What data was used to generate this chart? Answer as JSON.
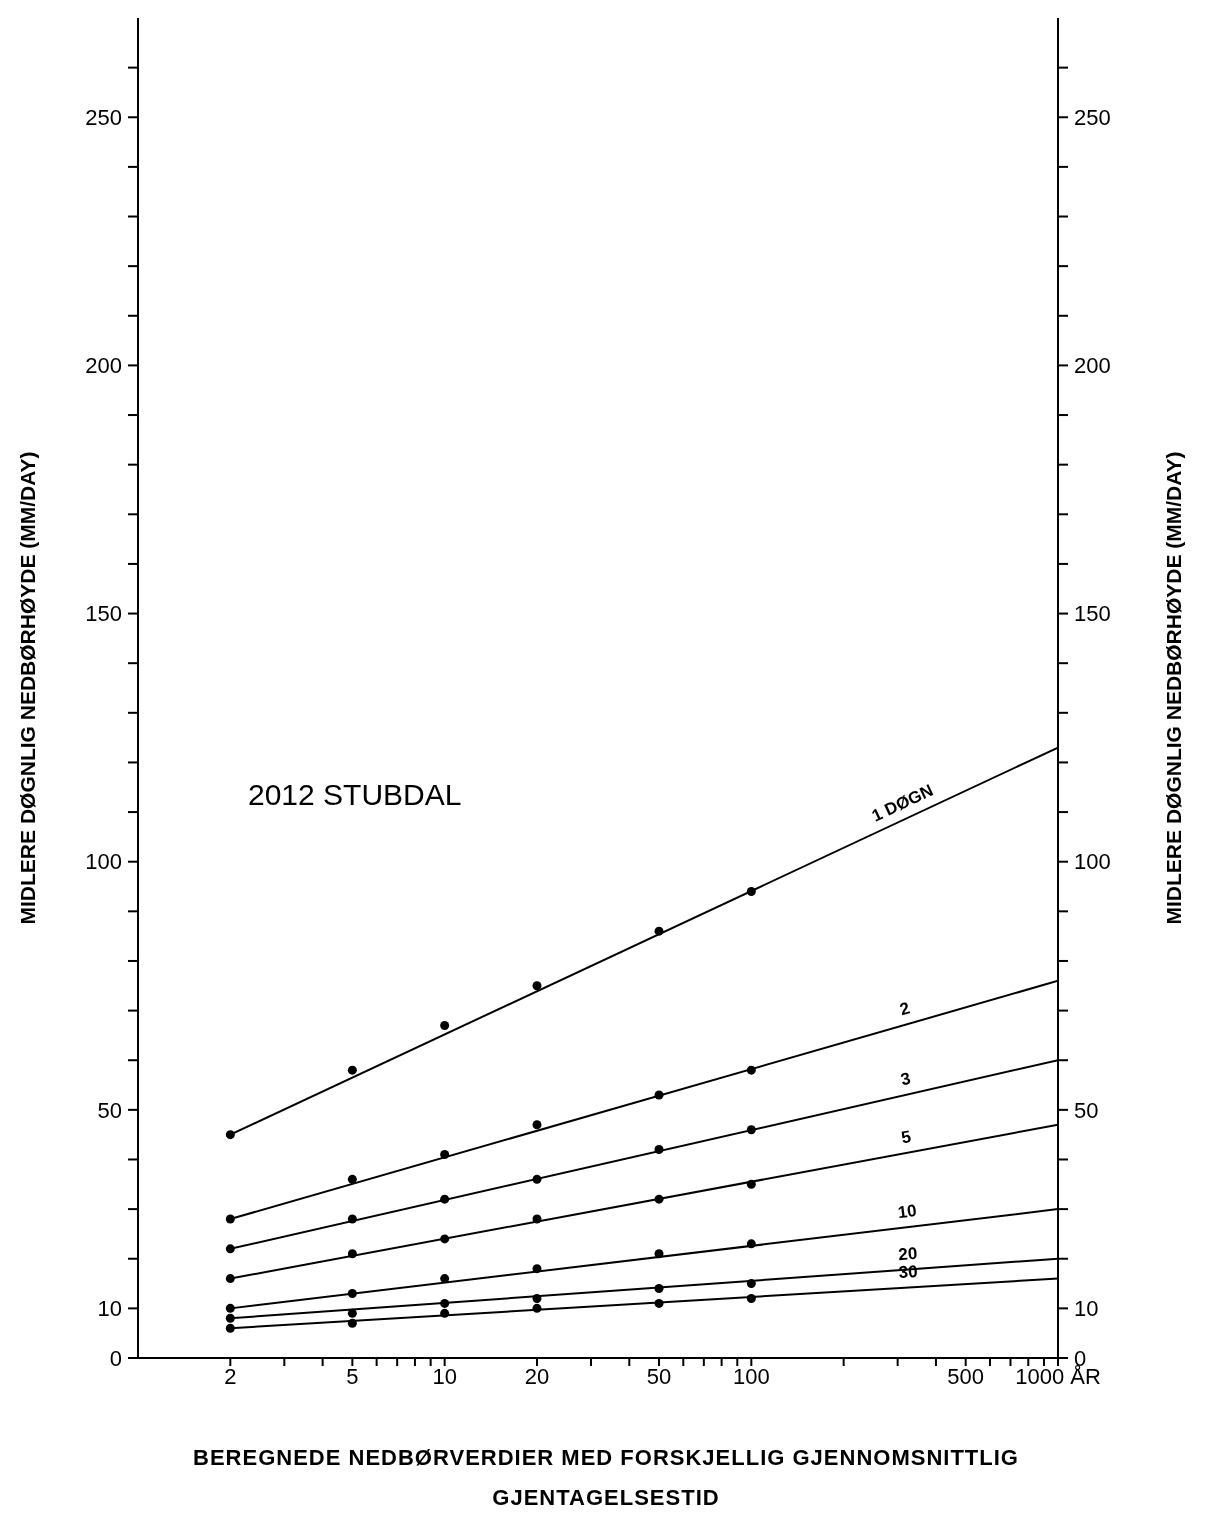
{
  "chart_data": {
    "type": "line",
    "title": "2012 STUBDAL",
    "xlabel": "BEREGNEDE NEDBØRVERDIER MED FORSKJELLIG GJENNOMSNITTLIG GJENTAGELSESTID",
    "ylabel": "MIDLERE DØGNLIG NEDBØRHØYDE (MM/DAY)",
    "y2label": "MIDLERE DØGNLIG NEDBØRHØYDE (MM/DAY)",
    "log": "x",
    "grid": false,
    "marker": "circle",
    "line_style": "solid",
    "xlim": [
      1,
      1000
    ],
    "xticks": [
      2,
      {
        "value": 3,
        "label": null
      },
      {
        "value": 4,
        "label": null
      },
      5,
      {
        "value": 6,
        "label": null
      },
      {
        "value": 7,
        "label": null
      },
      {
        "value": 8,
        "label": null
      },
      {
        "value": 9,
        "label": null
      },
      10,
      20,
      {
        "value": 30,
        "label": null
      },
      {
        "value": 40,
        "label": null
      },
      50,
      {
        "value": 60,
        "label": null
      },
      {
        "value": 70,
        "label": null
      },
      {
        "value": 80,
        "label": null
      },
      {
        "value": 90,
        "label": null
      },
      100,
      {
        "value": 200,
        "label": null
      },
      {
        "value": 300,
        "label": null
      },
      {
        "value": 400,
        "label": null
      },
      500,
      {
        "value": 600,
        "label": null
      },
      {
        "value": 700,
        "label": null
      },
      {
        "value": 800,
        "label": null
      },
      {
        "value": 900,
        "label": null
      },
      {
        "value": 1000,
        "label": "1000 ÅR"
      }
    ],
    "ylim": [
      0,
      270
    ],
    "yticks": [
      0,
      10,
      {
        "value": 20,
        "label": null
      },
      {
        "value": 30,
        "label": null
      },
      {
        "value": 40,
        "label": null
      },
      50,
      {
        "value": 60,
        "label": null
      },
      {
        "value": 70,
        "label": null
      },
      {
        "value": 80,
        "label": null
      },
      {
        "value": 90,
        "label": null
      },
      100,
      {
        "value": 110,
        "label": null
      },
      {
        "value": 120,
        "label": null
      },
      {
        "value": 130,
        "label": null
      },
      {
        "value": 140,
        "label": null
      },
      150,
      {
        "value": 160,
        "label": null
      },
      {
        "value": 170,
        "label": null
      },
      {
        "value": 180,
        "label": null
      },
      {
        "value": 190,
        "label": null
      },
      200,
      {
        "value": 210,
        "label": null
      },
      {
        "value": 220,
        "label": null
      },
      {
        "value": 230,
        "label": null
      },
      {
        "value": 240,
        "label": null
      },
      250,
      {
        "value": 260,
        "label": null
      }
    ],
    "y2lim": [
      0,
      270
    ],
    "y2ticks": [
      0,
      10,
      {
        "value": 20,
        "label": null
      },
      {
        "value": 30,
        "label": null
      },
      {
        "value": 40,
        "label": null
      },
      50,
      {
        "value": 60,
        "label": null
      },
      {
        "value": 70,
        "label": null
      },
      {
        "value": 80,
        "label": null
      },
      {
        "value": 90,
        "label": null
      },
      100,
      {
        "value": 110,
        "label": null
      },
      {
        "value": 120,
        "label": null
      },
      {
        "value": 130,
        "label": null
      },
      {
        "value": 140,
        "label": null
      },
      150,
      {
        "value": 160,
        "label": null
      },
      {
        "value": 170,
        "label": null
      },
      {
        "value": 180,
        "label": null
      },
      {
        "value": 190,
        "label": null
      },
      200,
      {
        "value": 210,
        "label": null
      },
      {
        "value": 220,
        "label": null
      },
      {
        "value": 230,
        "label": null
      },
      {
        "value": 240,
        "label": null
      },
      250,
      {
        "value": 260,
        "label": null
      }
    ],
    "series": [
      {
        "name": "1 DØGN",
        "marker": "none",
        "color": "#000000",
        "x": [
          2,
          1000
        ],
        "values": [
          45,
          123
        ]
      },
      {
        "name": "2",
        "marker": "none",
        "color": "#000000",
        "x": [
          2,
          1000
        ],
        "values": [
          28,
          76
        ]
      },
      {
        "name": "3",
        "marker": "none",
        "color": "#000000",
        "x": [
          2,
          1000
        ],
        "values": [
          22,
          60
        ]
      },
      {
        "name": "5",
        "marker": "none",
        "color": "#000000",
        "x": [
          2,
          1000
        ],
        "values": [
          16,
          47
        ]
      },
      {
        "name": "10",
        "marker": "none",
        "color": "#000000",
        "x": [
          2,
          1000
        ],
        "values": [
          10,
          30
        ]
      },
      {
        "name": "20",
        "marker": "none",
        "color": "#000000",
        "x": [
          2,
          1000
        ],
        "values": [
          8,
          20
        ]
      },
      {
        "name": "30",
        "marker": "none",
        "color": "#000000",
        "x": [
          2,
          1000
        ],
        "values": [
          6,
          16
        ]
      },
      {
        "type": "scatter",
        "color": "#000000",
        "x": [
          2,
          5,
          10,
          20,
          50,
          100
        ],
        "values": [
          45,
          58,
          67,
          75,
          86,
          94
        ]
      },
      {
        "type": "scatter",
        "color": "#000000",
        "x": [
          2,
          5,
          10,
          20,
          50,
          100
        ],
        "values": [
          28,
          36,
          41,
          47,
          53,
          58
        ]
      },
      {
        "type": "scatter",
        "color": "#000000",
        "x": [
          2,
          5,
          10,
          20,
          50,
          100
        ],
        "values": [
          22,
          28,
          32,
          36,
          42,
          46
        ]
      },
      {
        "type": "scatter",
        "color": "#000000",
        "x": [
          2,
          5,
          10,
          20,
          50,
          100
        ],
        "values": [
          16,
          21,
          24,
          28,
          32,
          35
        ]
      },
      {
        "type": "scatter",
        "color": "#000000",
        "x": [
          2,
          5,
          10,
          20,
          50,
          100
        ],
        "values": [
          10,
          13,
          16,
          18,
          21,
          23
        ]
      },
      {
        "type": "scatter",
        "color": "#000000",
        "x": [
          2,
          5,
          10,
          20,
          50,
          100
        ],
        "values": [
          8,
          9,
          11,
          12,
          14,
          15
        ]
      },
      {
        "type": "scatter",
        "color": "#000000",
        "x": [
          2,
          5,
          10,
          20,
          50,
          100
        ],
        "values": [
          6,
          7,
          9,
          10,
          11,
          12
        ]
      }
    ]
  }
}
